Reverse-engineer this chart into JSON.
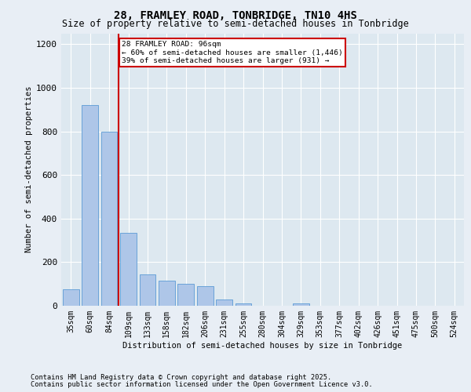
{
  "title1": "28, FRAMLEY ROAD, TONBRIDGE, TN10 4HS",
  "title2": "Size of property relative to semi-detached houses in Tonbridge",
  "xlabel": "Distribution of semi-detached houses by size in Tonbridge",
  "ylabel": "Number of semi-detached properties",
  "categories": [
    "35sqm",
    "60sqm",
    "84sqm",
    "109sqm",
    "133sqm",
    "158sqm",
    "182sqm",
    "206sqm",
    "231sqm",
    "255sqm",
    "280sqm",
    "304sqm",
    "329sqm",
    "353sqm",
    "377sqm",
    "402sqm",
    "426sqm",
    "451sqm",
    "475sqm",
    "500sqm",
    "524sqm"
  ],
  "values": [
    75,
    920,
    800,
    335,
    145,
    115,
    100,
    90,
    30,
    10,
    0,
    0,
    10,
    0,
    0,
    0,
    0,
    0,
    0,
    0,
    0
  ],
  "bar_color": "#aec6e8",
  "bar_edge_color": "#5b9bd5",
  "vline_color": "#cc0000",
  "vline_pos": 2.5,
  "ylim_max": 1250,
  "yticks": [
    0,
    200,
    400,
    600,
    800,
    1000,
    1200
  ],
  "annotation_title": "28 FRAMLEY ROAD: 96sqm",
  "annotation_line1": "← 60% of semi-detached houses are smaller (1,446)",
  "annotation_line2": "39% of semi-detached houses are larger (931) →",
  "annotation_box_color": "#cc0000",
  "footer1": "Contains HM Land Registry data © Crown copyright and database right 2025.",
  "footer2": "Contains public sector information licensed under the Open Government Licence v3.0.",
  "bg_color": "#e8eef5",
  "plot_bg_color": "#dde8f0",
  "title1_fontsize": 10,
  "title2_fontsize": 8.5,
  "axis_label_fontsize": 7.5,
  "tick_fontsize": 7,
  "annotation_fontsize": 6.8,
  "footer_fontsize": 6.2
}
